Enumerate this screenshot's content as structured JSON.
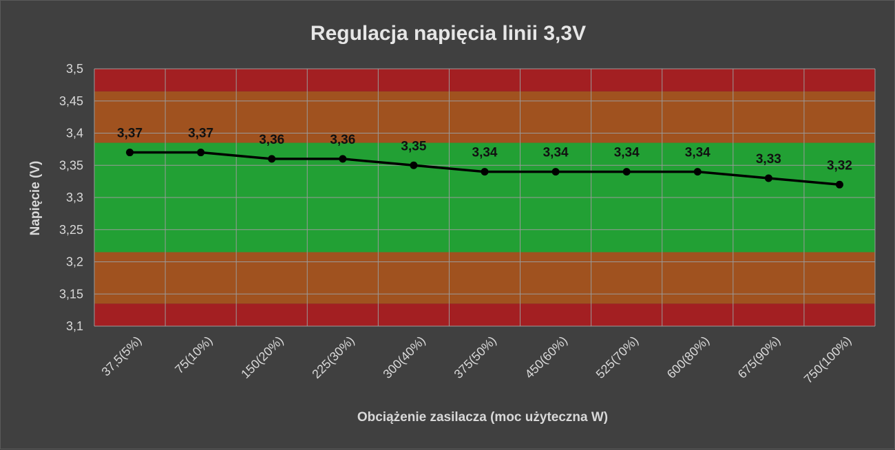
{
  "chart_data": {
    "type": "line",
    "title": "Regulacja napięcia linii 3,3V",
    "xlabel": "Obciążenie zasilacza (moc użyteczna W)",
    "ylabel": "Napięcie (V)",
    "categories": [
      "37,5(5%)",
      "75(10%)",
      "150(20%)",
      "225(30%)",
      "300(40%)",
      "375(50%)",
      "450(60%)",
      "525(70%)",
      "600(80%)",
      "675(90%)",
      "750(100%)"
    ],
    "series": [
      {
        "values": [
          3.37,
          3.37,
          3.36,
          3.36,
          3.35,
          3.34,
          3.34,
          3.34,
          3.34,
          3.33,
          3.32
        ],
        "data_labels": [
          "3,37",
          "3,37",
          "3,36",
          "3,36",
          "3,35",
          "3,34",
          "3,34",
          "3,34",
          "3,34",
          "3,33",
          "3,32"
        ],
        "color": "#000000"
      }
    ],
    "ylim": [
      3.1,
      3.5
    ],
    "yticks": [
      {
        "value": 3.1,
        "label": "3,1"
      },
      {
        "value": 3.15,
        "label": "3,15"
      },
      {
        "value": 3.2,
        "label": "3,2"
      },
      {
        "value": 3.25,
        "label": "3,25"
      },
      {
        "value": 3.3,
        "label": "3,3"
      },
      {
        "value": 3.35,
        "label": "3,35"
      },
      {
        "value": 3.4,
        "label": "3,4"
      },
      {
        "value": 3.45,
        "label": "3,45"
      },
      {
        "value": 3.5,
        "label": "3,5"
      }
    ],
    "grid": true,
    "background_bands": [
      {
        "from": 3.1,
        "to": 3.135,
        "color": "#a31f22"
      },
      {
        "from": 3.135,
        "to": 3.215,
        "color": "#a0521f"
      },
      {
        "from": 3.215,
        "to": 3.385,
        "color": "#22a034"
      },
      {
        "from": 3.385,
        "to": 3.465,
        "color": "#a0521f"
      },
      {
        "from": 3.465,
        "to": 3.5,
        "color": "#a31f22"
      }
    ],
    "colors": {
      "background": "#404040",
      "text": "#d9d9d9",
      "grid": "#9a9a9a",
      "line": "#000000"
    }
  }
}
